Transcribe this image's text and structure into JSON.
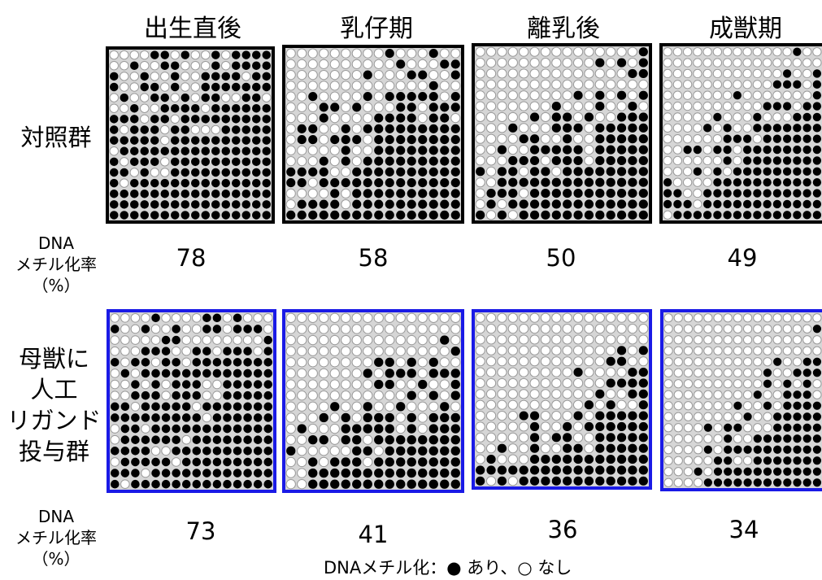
{
  "stages": [
    "出生直後",
    "乳仔期",
    "離乳後",
    "成獣期"
  ],
  "groups": {
    "control": "対照群",
    "ligand": [
      "母獣に",
      "人工",
      "リガンド",
      "投与群"
    ]
  },
  "methylation_label": [
    "DNA",
    "メチル化率",
    "（%）"
  ],
  "rates": {
    "control": [
      "78",
      "58",
      "50",
      "49"
    ],
    "ligand": [
      "73",
      "41",
      "36",
      "34"
    ]
  },
  "legend": {
    "prefix": "DNAメチル化：",
    "filled_glyph": "●",
    "filled_text": " あり、",
    "open_glyph": "○",
    "open_text": " なし"
  },
  "colors": {
    "control_border": "#000000",
    "ligand_border": "#1a1ae6",
    "filled_dot": "#000000",
    "open_dot_fill": "#ffffff",
    "open_dot_stroke": "#999999",
    "panel_bg": "#d6d6d6"
  },
  "grid": {
    "rows": 16,
    "cols": 16
  },
  "methylation_fraction": {
    "control": [
      0.78,
      0.58,
      0.5,
      0.49
    ],
    "ligand": [
      0.73,
      0.41,
      0.36,
      0.34
    ]
  }
}
